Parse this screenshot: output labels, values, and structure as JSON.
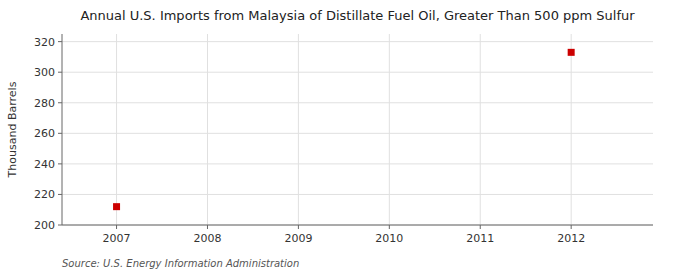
{
  "chart_data": {
    "type": "scatter",
    "title": "Annual U.S. Imports from Malaysia of Distillate Fuel Oil, Greater Than 500 ppm Sulfur",
    "y_label": "Thousand Barrels",
    "source": "Source: U.S. Energy Information Administration",
    "x": [
      2007,
      2012
    ],
    "values": [
      212,
      313
    ],
    "color": "#CC0000",
    "marker": "square",
    "xlim": [
      2006.4,
      2012.9
    ],
    "ylim": [
      200,
      325
    ],
    "xticks": [
      2007,
      2008,
      2009,
      2010,
      2011,
      2012
    ],
    "yticks": [
      200,
      220,
      240,
      260,
      280,
      300,
      320
    ],
    "grid": true
  }
}
